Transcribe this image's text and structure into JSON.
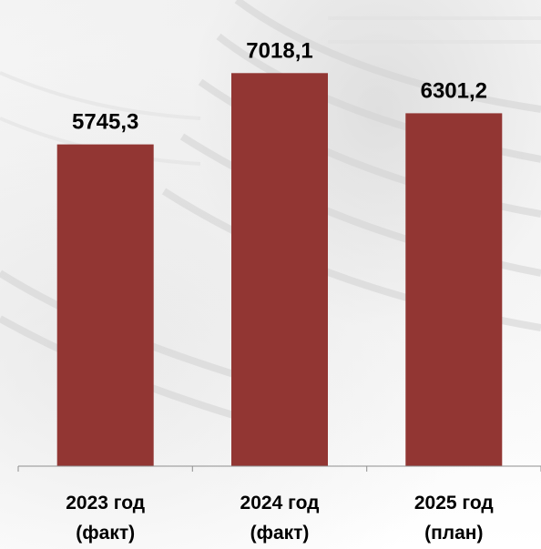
{
  "chart_data": {
    "type": "bar",
    "categories": [
      [
        "2023 год",
        "(факт)"
      ],
      [
        "2024 год",
        "(факт)"
      ],
      [
        "2025 год",
        "(план)"
      ]
    ],
    "values": [
      5745.3,
      7018.1,
      6301.2
    ],
    "value_labels": [
      "5745,3",
      "7018,1",
      "6301,2"
    ],
    "ylim": [
      0,
      7900
    ],
    "grid": false,
    "legend": "none",
    "bar_color": "#923633",
    "title": "",
    "xlabel": "",
    "ylabel": ""
  }
}
